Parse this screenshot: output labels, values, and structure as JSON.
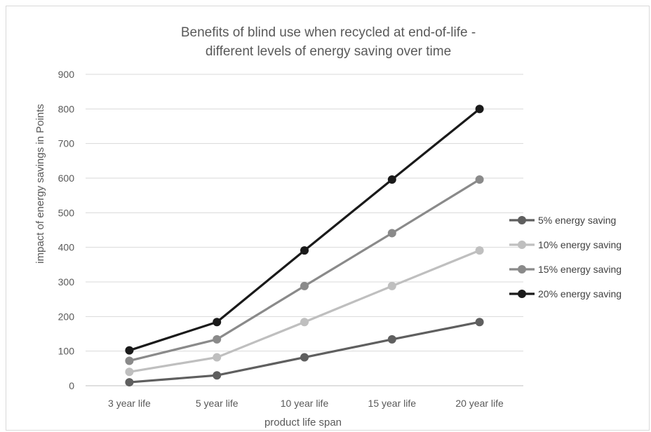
{
  "chart_data": {
    "type": "line",
    "title_lines": [
      "Benefits of blind use when recycled at end-of-life -",
      "different levels of energy saving over time"
    ],
    "xlabel": "product life span",
    "ylabel": "impact of energy savings in Points",
    "categories": [
      "3 year life",
      "5 year life",
      "10 year life",
      "15 year life",
      "20 year life"
    ],
    "ylim": [
      0,
      900
    ],
    "yticks": [
      0,
      100,
      200,
      300,
      400,
      500,
      600,
      700,
      800,
      900
    ],
    "grid": true,
    "legend_position": "right",
    "series": [
      {
        "name": "5% energy saving",
        "color": "#5f5f5f",
        "values": [
          10,
          30,
          82,
          134,
          184
        ]
      },
      {
        "name": "10% energy saving",
        "color": "#bfbfbf",
        "values": [
          40,
          82,
          184,
          288,
          391
        ]
      },
      {
        "name": "15% energy saving",
        "color": "#8a8a8a",
        "values": [
          72,
          134,
          288,
          441,
          596
        ]
      },
      {
        "name": "20% energy saving",
        "color": "#1a1a1a",
        "values": [
          102,
          184,
          391,
          596,
          800
        ]
      }
    ]
  }
}
